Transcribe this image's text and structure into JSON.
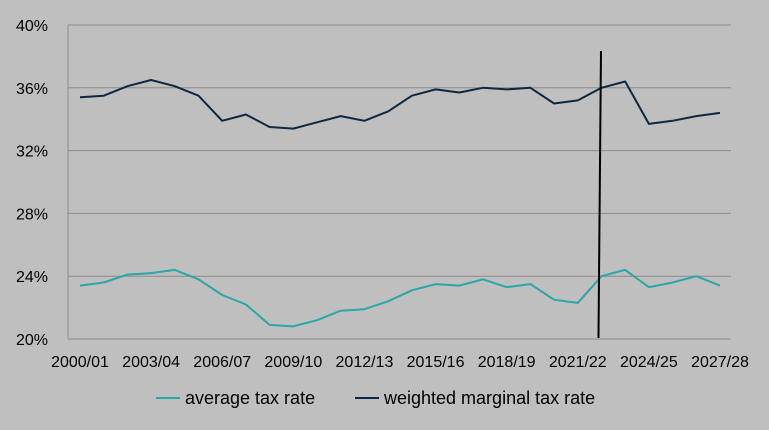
{
  "chart_data": {
    "type": "line",
    "title": "",
    "xlabel": "",
    "ylabel": "",
    "ylim": [
      0.2,
      0.4
    ],
    "y_ticks": [
      {
        "value": 0.2,
        "label": "20%"
      },
      {
        "value": 0.24,
        "label": "24%"
      },
      {
        "value": 0.28,
        "label": "28%"
      },
      {
        "value": 0.32,
        "label": "32%"
      },
      {
        "value": 0.36,
        "label": "36%"
      },
      {
        "value": 0.4,
        "label": "40%"
      }
    ],
    "x": [
      "2000/01",
      "2001/02",
      "2002/03",
      "2003/04",
      "2004/05",
      "2005/06",
      "2006/07",
      "2007/08",
      "2008/09",
      "2009/10",
      "2010/11",
      "2011/12",
      "2012/13",
      "2013/14",
      "2014/15",
      "2015/16",
      "2016/17",
      "2017/18",
      "2018/19",
      "2019/20",
      "2020/21",
      "2021/22",
      "2022/23",
      "2023/24",
      "2024/25",
      "2025/26",
      "2026/27",
      "2027/28"
    ],
    "x_tick_labels": [
      "2000/01",
      "2003/04",
      "2006/07",
      "2009/10",
      "2012/13",
      "2015/16",
      "2018/19",
      "2021/22",
      "2024/25",
      "2027/28"
    ],
    "grid": {
      "horizontal": true,
      "vertical": false
    },
    "legend_position": "bottom",
    "vertical_marker": {
      "x": "2022/23"
    },
    "colors": {
      "background": "#bfbfbf",
      "grid": "#8c8c8c",
      "marker": "#000000"
    },
    "series": [
      {
        "name": "average tax rate",
        "color": "#2aa7a6",
        "values": [
          0.234,
          0.236,
          0.241,
          0.242,
          0.244,
          0.238,
          0.228,
          0.222,
          0.209,
          0.208,
          0.212,
          0.218,
          0.219,
          0.224,
          0.231,
          0.235,
          0.234,
          0.238,
          0.233,
          0.235,
          0.225,
          0.223,
          0.24,
          0.244,
          0.233,
          0.236,
          0.24,
          0.234
        ]
      },
      {
        "name": "weighted marginal tax rate",
        "color": "#0e2841",
        "values": [
          0.354,
          0.355,
          0.361,
          0.365,
          0.361,
          0.355,
          0.339,
          0.343,
          0.335,
          0.334,
          0.338,
          0.342,
          0.339,
          0.345,
          0.355,
          0.359,
          0.357,
          0.36,
          0.359,
          0.36,
          0.35,
          0.352,
          0.36,
          0.364,
          0.337,
          0.339,
          0.342,
          0.344
        ]
      }
    ]
  }
}
